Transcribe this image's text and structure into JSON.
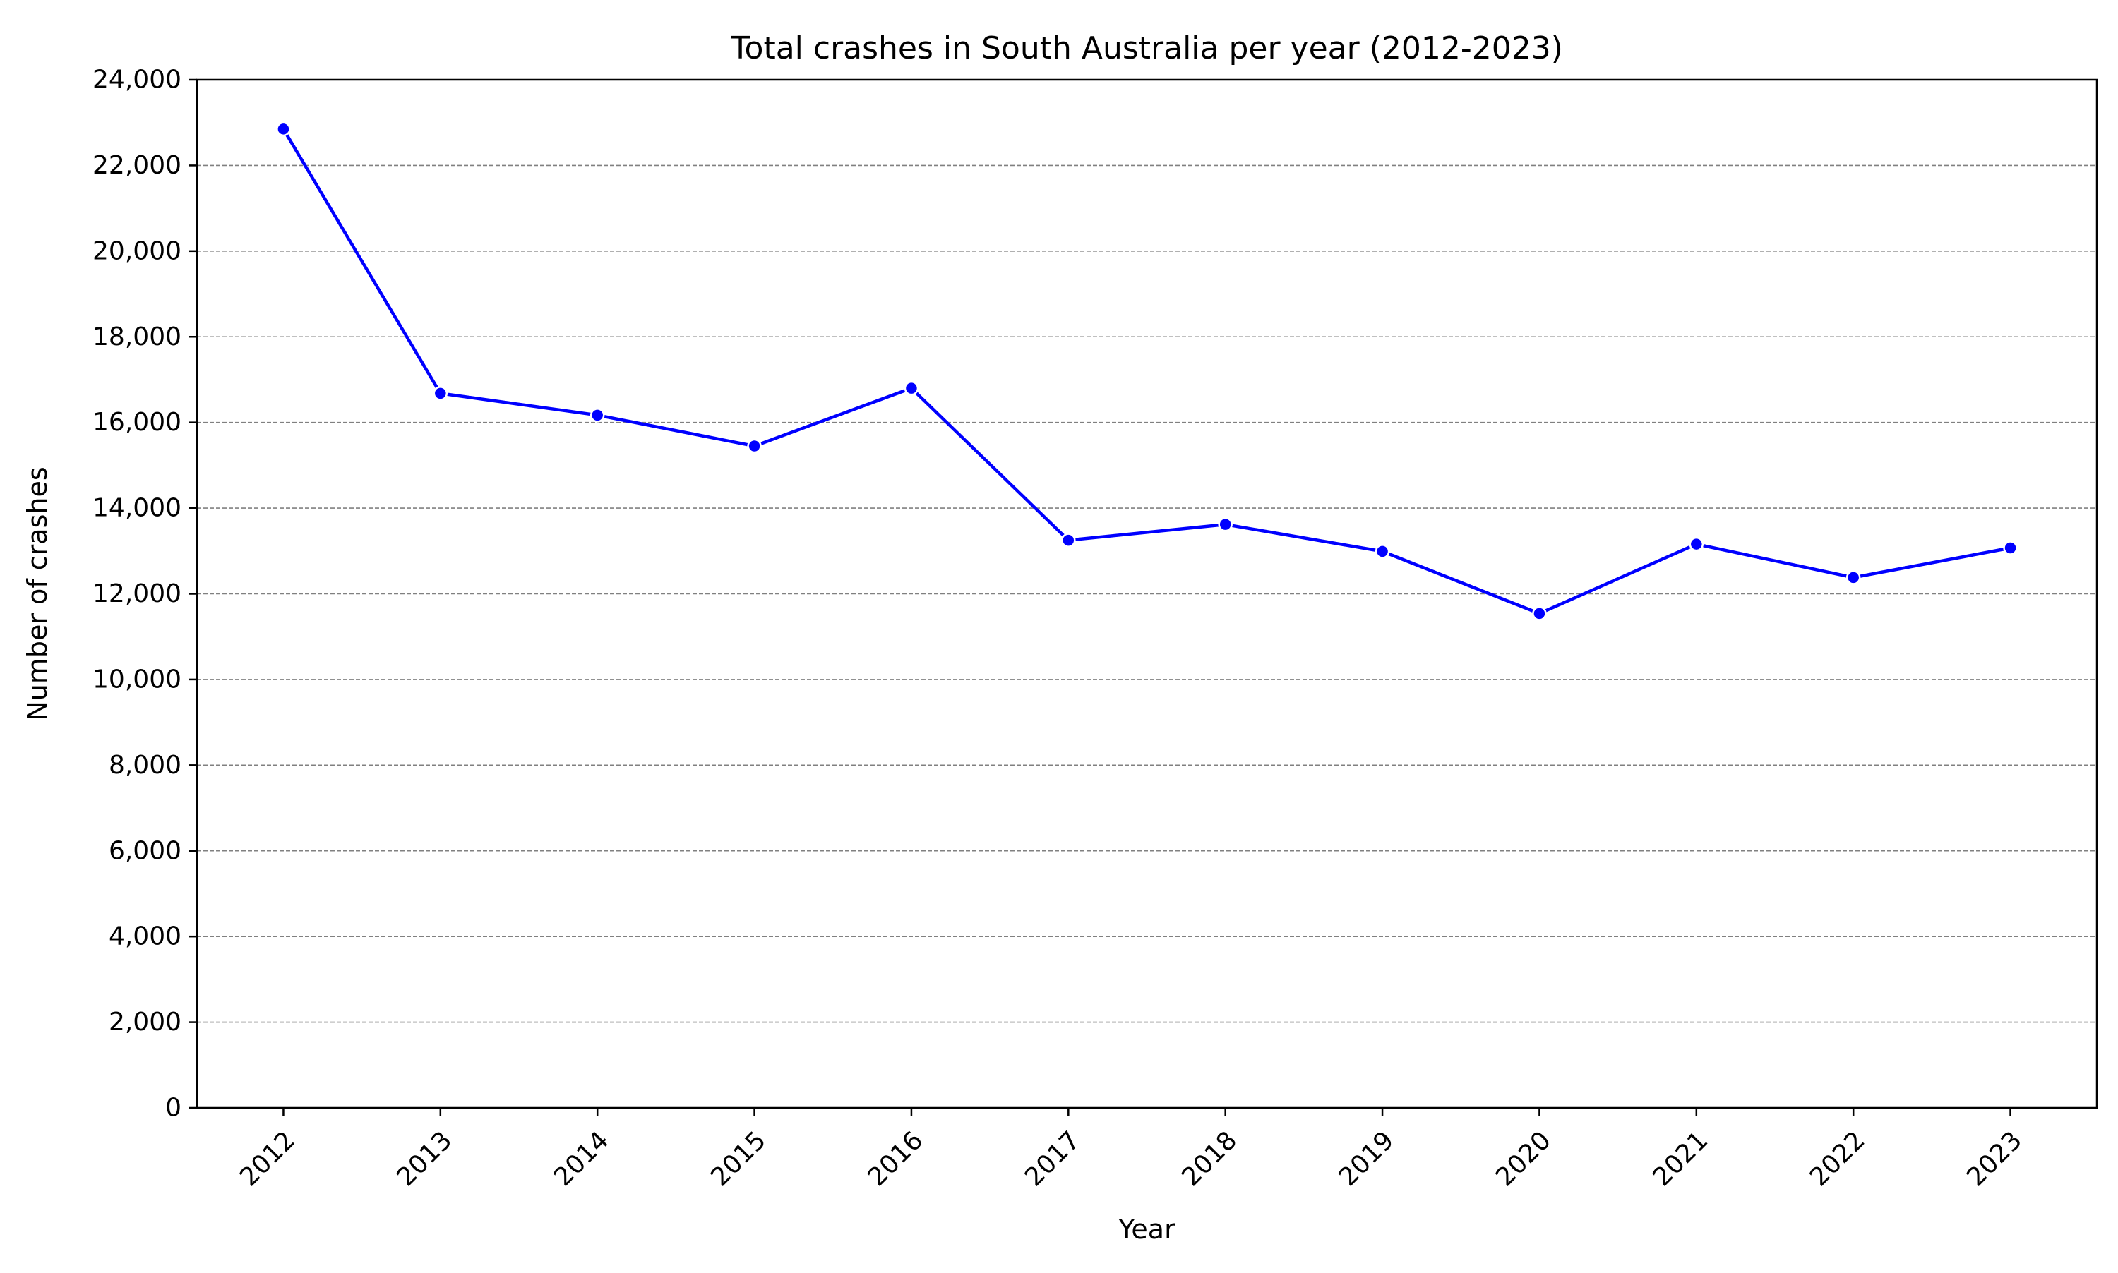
{
  "chart_data": {
    "type": "line",
    "title": "Total crashes in South Australia per year (2012-2023)",
    "xlabel": "Year",
    "ylabel": "Number of crashes",
    "categories": [
      "2012",
      "2013",
      "2014",
      "2015",
      "2016",
      "2017",
      "2018",
      "2019",
      "2020",
      "2021",
      "2022",
      "2023"
    ],
    "series": [
      {
        "values": [
          22850,
          16680,
          16170,
          15450,
          16800,
          13250,
          13620,
          12990,
          11540,
          13160,
          12380,
          13070
        ],
        "color": "#0000ff"
      }
    ],
    "ylim": [
      0,
      24000
    ],
    "yticks": [
      0,
      2000,
      4000,
      6000,
      8000,
      10000,
      12000,
      14000,
      16000,
      18000,
      20000,
      22000,
      24000
    ],
    "ytick_labels": [
      "0",
      "2,000",
      "4,000",
      "6,000",
      "8,000",
      "10,000",
      "12,000",
      "14,000",
      "16,000",
      "18,000",
      "20,000",
      "22,000",
      "24,000"
    ],
    "grid": "horizontal dashed",
    "grid_color": "#808080",
    "xtick_rotation_deg": 45
  }
}
